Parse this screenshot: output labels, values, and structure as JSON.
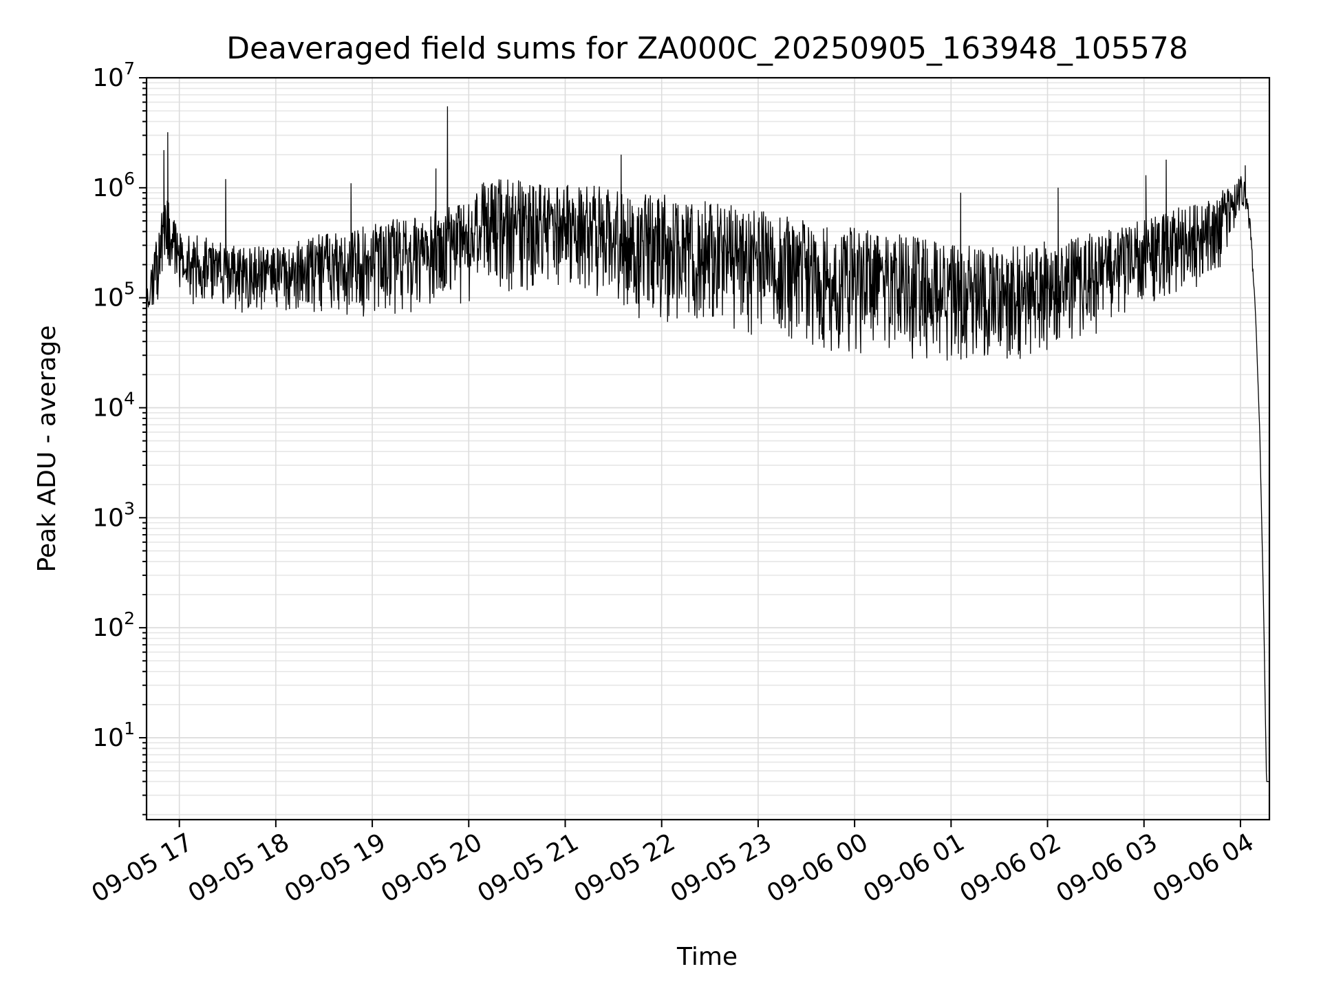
{
  "chart_data": {
    "type": "line",
    "title": "Deaveraged field sums for ZA000C_20250905_163948_105578",
    "xlabel": "Time",
    "ylabel": "Peak ADU - average",
    "yscale": "log",
    "ylim": [
      1.8,
      10000000
    ],
    "xlim_hours": [
      16.66,
      28.3
    ],
    "grid": true,
    "x_ticks": [
      {
        "hour": 17,
        "label": "09-05 17"
      },
      {
        "hour": 18,
        "label": "09-05 18"
      },
      {
        "hour": 19,
        "label": "09-05 19"
      },
      {
        "hour": 20,
        "label": "09-05 20"
      },
      {
        "hour": 21,
        "label": "09-05 21"
      },
      {
        "hour": 22,
        "label": "09-05 22"
      },
      {
        "hour": 23,
        "label": "09-05 23"
      },
      {
        "hour": 24,
        "label": "09-06 00"
      },
      {
        "hour": 25,
        "label": "09-06 01"
      },
      {
        "hour": 26,
        "label": "09-06 02"
      },
      {
        "hour": 27,
        "label": "09-06 03"
      },
      {
        "hour": 28,
        "label": "09-06 04"
      }
    ],
    "y_ticks": [
      {
        "exp": 1,
        "base": "10",
        "sup": "1"
      },
      {
        "exp": 2,
        "base": "10",
        "sup": "2"
      },
      {
        "exp": 3,
        "base": "10",
        "sup": "3"
      },
      {
        "exp": 4,
        "base": "10",
        "sup": "4"
      },
      {
        "exp": 5,
        "base": "10",
        "sup": "5"
      },
      {
        "exp": 6,
        "base": "10",
        "sup": "6"
      },
      {
        "exp": 7,
        "base": "10",
        "sup": "7"
      }
    ],
    "series": [
      {
        "name": "deaveraged field sums",
        "color": "#000000",
        "envelope": {
          "x_hours": [
            16.66,
            16.75,
            16.85,
            16.95,
            17.1,
            17.3,
            17.5,
            17.7,
            17.9,
            18.1,
            18.3,
            18.5,
            18.7,
            18.9,
            19.1,
            19.3,
            19.5,
            19.7,
            19.9,
            20.0,
            20.1,
            20.3,
            20.5,
            20.7,
            20.9,
            21.1,
            21.3,
            21.5,
            21.7,
            21.9,
            22.1,
            22.3,
            22.5,
            22.7,
            22.9,
            23.1,
            23.3,
            23.5,
            23.7,
            23.9,
            24.1,
            24.3,
            24.5,
            24.7,
            24.9,
            25.1,
            25.3,
            25.5,
            25.7,
            25.9,
            26.1,
            26.3,
            26.5,
            26.7,
            26.9,
            27.1,
            27.3,
            27.5,
            27.7,
            27.85,
            27.95,
            28.02,
            28.08,
            28.12,
            28.16,
            28.2,
            28.24,
            28.27,
            28.3
          ],
          "low": [
            60000,
            70000,
            150000,
            150000,
            80000,
            80000,
            70000,
            70000,
            80000,
            70000,
            70000,
            70000,
            70000,
            65000,
            65000,
            70000,
            70000,
            70000,
            70000,
            70000,
            150000,
            120000,
            100000,
            120000,
            120000,
            120000,
            90000,
            70000,
            60000,
            60000,
            60000,
            55000,
            50000,
            50000,
            45000,
            45000,
            40000,
            35000,
            33000,
            32000,
            30000,
            30000,
            28000,
            27000,
            26000,
            25000,
            25000,
            26000,
            27000,
            30000,
            35000,
            40000,
            45000,
            55000,
            70000,
            90000,
            100000,
            110000,
            120000,
            250000,
            400000,
            600000,
            500000,
            200000,
            50000,
            5000,
            100,
            4,
            4
          ],
          "high": [
            110000,
            300000,
            1000000,
            500000,
            400000,
            350000,
            300000,
            300000,
            300000,
            300000,
            350000,
            400000,
            400000,
            450000,
            500000,
            550000,
            600000,
            650000,
            700000,
            800000,
            1100000,
            1200000,
            1200000,
            1100000,
            1100000,
            1100000,
            1050000,
            1000000,
            950000,
            900000,
            850000,
            800000,
            750000,
            700000,
            650000,
            600000,
            550000,
            500000,
            480000,
            450000,
            420000,
            400000,
            380000,
            350000,
            330000,
            300000,
            300000,
            300000,
            300000,
            320000,
            340000,
            360000,
            400000,
            450000,
            500000,
            550000,
            650000,
            700000,
            800000,
            1000000,
            1200000,
            1300000,
            900000,
            300000,
            60000,
            6000,
            150,
            4,
            4
          ]
        },
        "spikes": [
          {
            "hour": 16.88,
            "value": 3200000
          },
          {
            "hour": 16.84,
            "value": 2200000
          },
          {
            "hour": 17.48,
            "value": 1200000
          },
          {
            "hour": 18.78,
            "value": 1100000
          },
          {
            "hour": 19.66,
            "value": 1500000
          },
          {
            "hour": 19.78,
            "value": 5500000
          },
          {
            "hour": 21.58,
            "value": 2000000
          },
          {
            "hour": 25.1,
            "value": 900000
          },
          {
            "hour": 26.11,
            "value": 1000000
          },
          {
            "hour": 27.02,
            "value": 1300000
          },
          {
            "hour": 27.23,
            "value": 1800000
          },
          {
            "hour": 28.05,
            "value": 1600000
          }
        ]
      }
    ]
  }
}
